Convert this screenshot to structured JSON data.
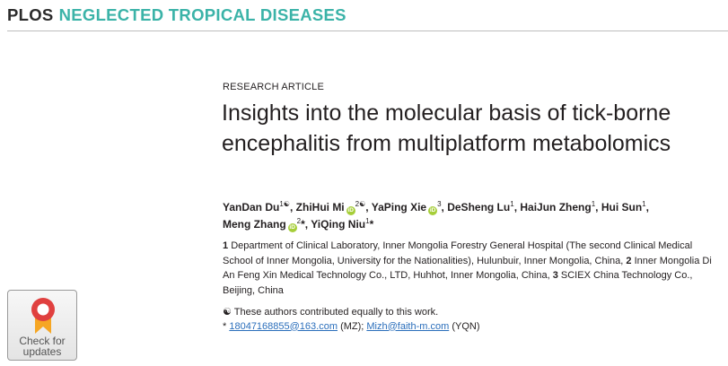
{
  "journal": {
    "plos": "PLOS",
    "name": "NEGLECTED TROPICAL DISEASES"
  },
  "article_type": "RESEARCH ARTICLE",
  "title": "Insights into the molecular basis of tick-borne encephalitis from multiplatform metabolomics",
  "authors": [
    {
      "name": "YanDan Du",
      "sup": "1☯",
      "orcid": false,
      "sep": ", "
    },
    {
      "name": "ZhiHui Mi",
      "sup": "2☯",
      "orcid": true,
      "sep": ", "
    },
    {
      "name": "YaPing Xie",
      "sup": "3",
      "orcid": true,
      "sep": ", "
    },
    {
      "name": "DeSheng Lu",
      "sup": "1",
      "orcid": false,
      "sep": ", "
    },
    {
      "name": "HaiJun Zheng",
      "sup": "1",
      "orcid": false,
      "sep": ", "
    },
    {
      "name": "Hui Sun",
      "sup": "1",
      "orcid": false,
      "sep": ", "
    },
    {
      "name": "Meng Zhang",
      "sup": "2",
      "orcid": true,
      "sep": "*, "
    },
    {
      "name": "YiQing Niu",
      "sup": "1",
      "orcid": false,
      "sep": "*"
    }
  ],
  "orcid_glyph": "iD",
  "affiliations": [
    {
      "num": "1",
      "text": "Department of Clinical Laboratory, Inner Mongolia Forestry General Hospital (The second Clinical Medical School of Inner Mongolia, University for the Nationalities), Hulunbuir, Inner Mongolia, China,"
    },
    {
      "num": "2",
      "text": "Inner Mongolia Di An Feng Xin Medical Technology Co., LTD, Huhhot, Inner Mongolia, China,"
    },
    {
      "num": "3",
      "text": "SCIEX China Technology Co., Beijing, China"
    }
  ],
  "notes": {
    "equal_symbol": "☯",
    "equal_text": "These authors contributed equally to this work.",
    "corr_symbol": "*",
    "email1": "18047168855@163.com",
    "email1_tag": "(MZ);",
    "email2": "Mizh@faith-m.com",
    "email2_tag": "(YQN)"
  },
  "badge": {
    "line1": "Check for",
    "line2": "updates"
  },
  "colors": {
    "journal_accent": "#3bb3a8",
    "link": "#2a6ebb",
    "orcid": "#a6ce39",
    "badge_red": "#e0403f",
    "badge_orange": "#f6a623"
  }
}
